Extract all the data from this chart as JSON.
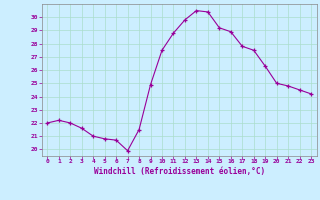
{
  "x": [
    0,
    1,
    2,
    3,
    4,
    5,
    6,
    7,
    8,
    9,
    10,
    11,
    12,
    13,
    14,
    15,
    16,
    17,
    18,
    19,
    20,
    21,
    22,
    23
  ],
  "y": [
    22.0,
    22.2,
    22.0,
    21.6,
    21.0,
    20.8,
    20.7,
    19.9,
    21.5,
    24.9,
    27.5,
    28.8,
    29.8,
    30.5,
    30.4,
    29.2,
    28.9,
    27.8,
    27.5,
    26.3,
    25.0,
    24.8,
    24.5,
    24.2
  ],
  "line_color": "#990099",
  "marker": "+",
  "bg_color": "#cceeff",
  "grid_color": "#aaddcc",
  "xlabel": "Windchill (Refroidissement éolien,°C)",
  "xlabel_color": "#990099",
  "tick_color": "#990099",
  "ylim": [
    19.5,
    31.0
  ],
  "xlim": [
    -0.5,
    23.5
  ],
  "yticks": [
    20,
    21,
    22,
    23,
    24,
    25,
    26,
    27,
    28,
    29,
    30
  ],
  "xticks": [
    0,
    1,
    2,
    3,
    4,
    5,
    6,
    7,
    8,
    9,
    10,
    11,
    12,
    13,
    14,
    15,
    16,
    17,
    18,
    19,
    20,
    21,
    22,
    23
  ]
}
